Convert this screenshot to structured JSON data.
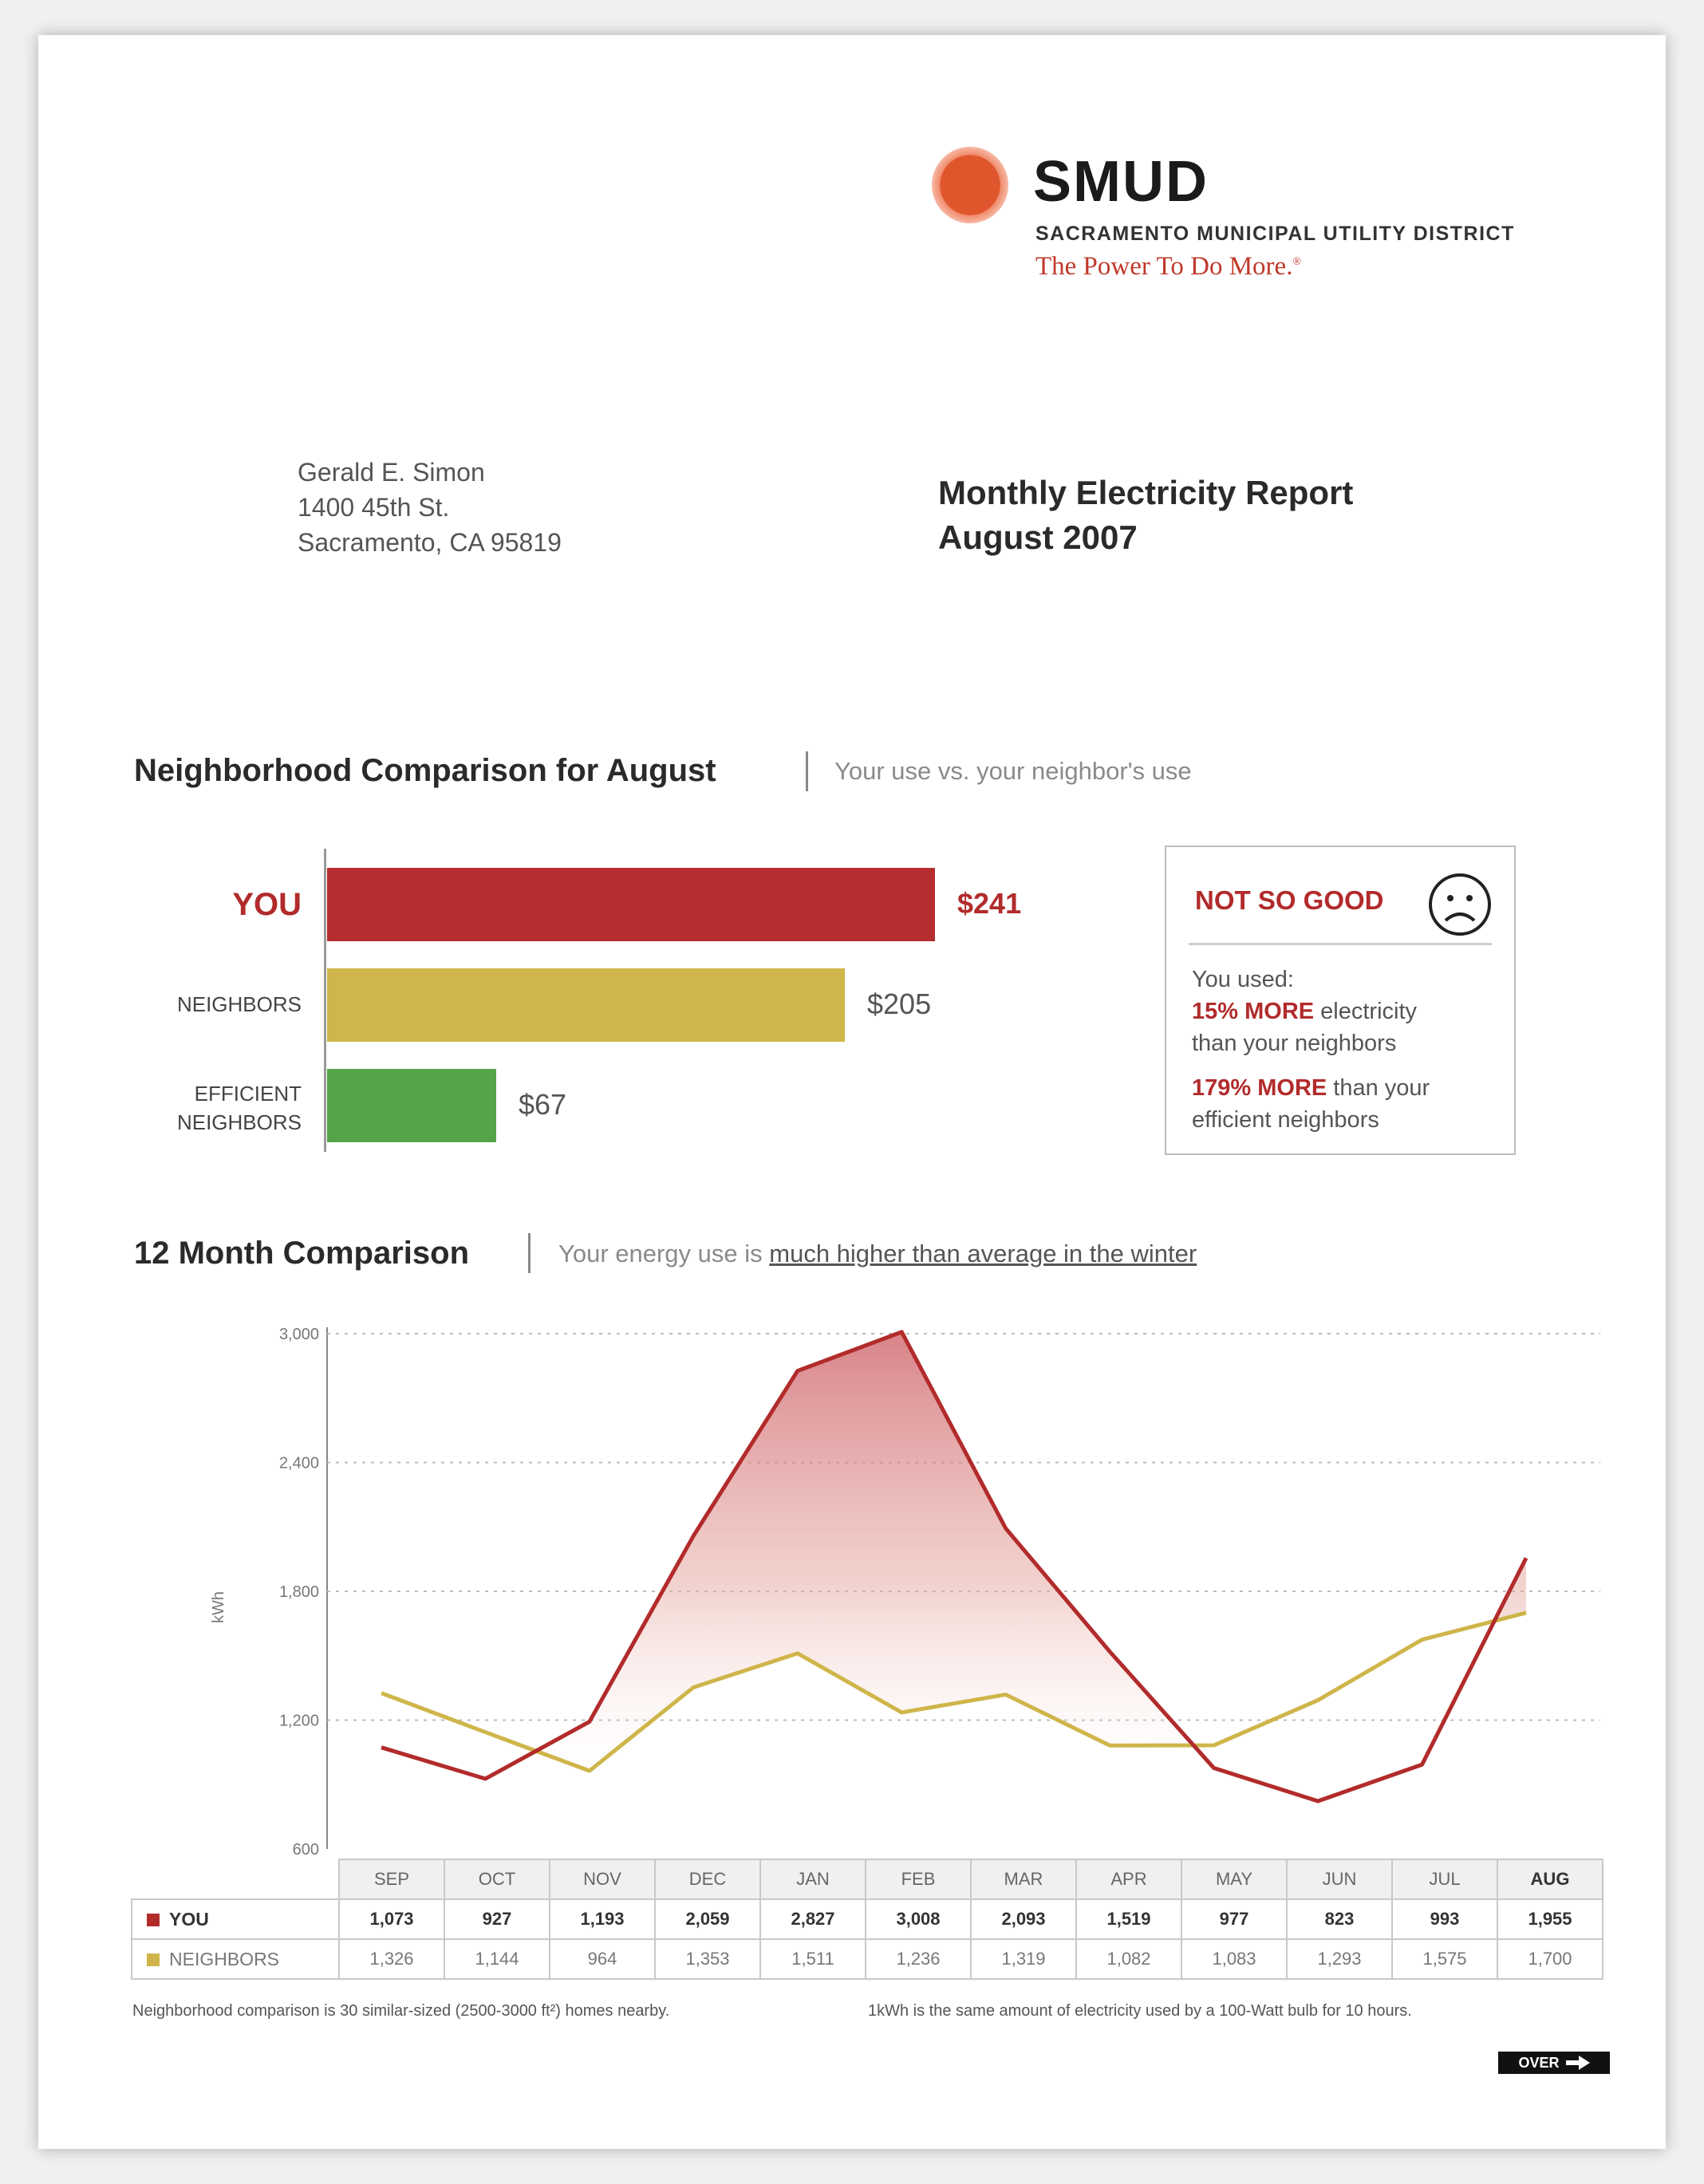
{
  "logo": {
    "name": "SMUD",
    "subtitle": "SACRAMENTO MUNICIPAL UTILITY DISTRICT",
    "tagline": "The Power To Do More.",
    "tagline_mark": "®",
    "color": "#e0562c"
  },
  "address": {
    "name": "Gerald E. Simon",
    "street": "1400 45th St.",
    "city": "Sacramento, CA 95819"
  },
  "report": {
    "title": "Monthly Electricity Report",
    "period": "August 2007"
  },
  "neighborhood": {
    "title": "Neighborhood Comparison for August",
    "subtitle": "Your use vs. your neighbor's use",
    "bars": [
      {
        "label": "YOU",
        "value_label": "$241",
        "value": 241,
        "color": "#b52d2f"
      },
      {
        "label": "NEIGHBORS",
        "value_label": "$205",
        "value": 205,
        "color": "#cfb54a"
      },
      {
        "label_line1": "EFFICIENT",
        "label_line2": "NEIGHBORS",
        "value_label": "$67",
        "value": 67,
        "color": "#56a44a"
      }
    ],
    "status": {
      "title": "NOT SO GOOD",
      "icon": "sad-face-icon",
      "used": "You used:",
      "line1_bold": "15% MORE",
      "line1_rest": " electricity",
      "line2": "than your neighbors",
      "line3_bold": "179% MORE",
      "line3_rest": " than your",
      "line4": "efficient neighbors"
    }
  },
  "twelve_month": {
    "title": "12 Month Comparison",
    "subtitle_prefix": "Your energy use is ",
    "subtitle_link": "much higher than average in the winter"
  },
  "chart_data": {
    "type": "line",
    "ylabel": "kWh",
    "ylim": [
      600,
      3000
    ],
    "yticks": [
      "600",
      "1,200",
      "1,800",
      "2,400",
      "3,000"
    ],
    "ytick_values": [
      600,
      1200,
      1800,
      2400,
      3000
    ],
    "categories": [
      "SEP",
      "OCT",
      "NOV",
      "DEC",
      "JAN",
      "FEB",
      "MAR",
      "APR",
      "MAY",
      "JUN",
      "JUL",
      "AUG"
    ],
    "series": [
      {
        "name": "YOU",
        "color": "#b22b2b",
        "values": [
          1073,
          927,
          1193,
          2059,
          2827,
          3008,
          2093,
          1519,
          977,
          823,
          993,
          1955
        ],
        "labels": [
          "1,073",
          "927",
          "1,193",
          "2,059",
          "2,827",
          "3,008",
          "2,093",
          "1,519",
          "977",
          "823",
          "993",
          "1,955"
        ]
      },
      {
        "name": "NEIGHBORS",
        "color": "#cfb54a",
        "values": [
          1326,
          1144,
          964,
          1353,
          1511,
          1236,
          1319,
          1082,
          1083,
          1293,
          1575,
          1700
        ],
        "labels": [
          "1,326",
          "1,144",
          "964",
          "1,353",
          "1,511",
          "1,236",
          "1,319",
          "1,082",
          "1,083",
          "1,293",
          "1,575",
          "1,700"
        ]
      }
    ],
    "grid": true,
    "highlight_column": "AUG"
  },
  "footnotes": {
    "left": "Neighborhood comparison is 30 similar-sized (2500-3000 ft²) homes nearby.",
    "right": "1kWh is the same amount of electricity used by a 100-Watt bulb for 10 hours."
  },
  "over_button": {
    "label": "OVER"
  }
}
